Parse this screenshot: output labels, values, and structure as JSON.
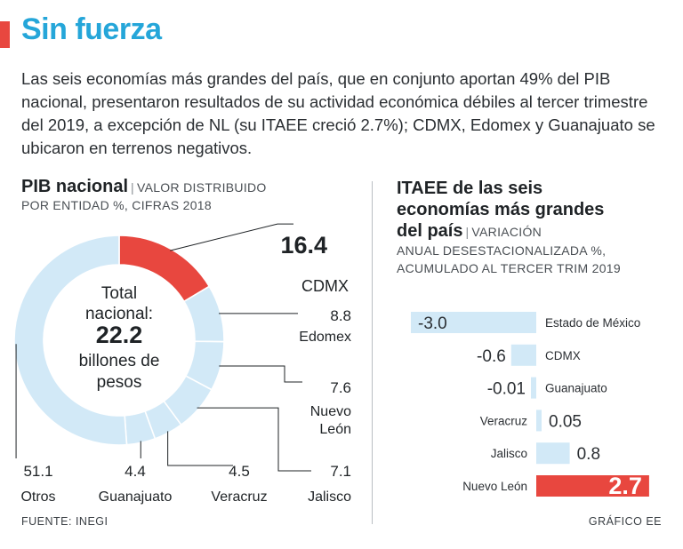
{
  "header": {
    "title": "Sin fuerza",
    "intro": "Las seis economías más grandes del país, que en conjunto aportan 49% del PIB nacional, presentaron resultados de su actividad económica débiles al tercer trimestre del 2019, a excepción de NL (su ITAEE creció 2.7%); CDMX, Edomex y Guanajuato se ubicaron en terrenos negativos."
  },
  "colors": {
    "accent": "#e8473f",
    "title": "#25a6d9",
    "light_blue": "#d2e9f7"
  },
  "left": {
    "title": "PIB nacional",
    "subtitle_line1": "VALOR DISTRIBUIDO",
    "subtitle_line2": "POR ENTIDAD %, CIFRAS 2018",
    "center_line1": "Total",
    "center_line2": "nacional:",
    "center_value": "22.2",
    "center_line3": "billones de",
    "center_line4": "pesos"
  },
  "right": {
    "title_line1": "ITAEE de las seis",
    "title_line2": "economías más grandes",
    "title_line3": "del país",
    "subtitle_line1": "VARIACIÓN",
    "subtitle_line2": "ANUAL DESESTACIONALIZADA %,",
    "subtitle_line3": "ACUMULADO AL TERCER TRIM 2019"
  },
  "footer": {
    "source": "FUENTE: INEGI",
    "credit": "GRÁFICO EE"
  },
  "chart_data": [
    {
      "type": "pie",
      "title": "PIB nacional",
      "subtitle": "VALOR DISTRIBUIDO POR ENTIDAD %, CIFRAS 2018",
      "total_label": "Total nacional: 22.2 billones de pesos",
      "slices": [
        {
          "label": "CDMX",
          "value": 16.4,
          "display": "16.4",
          "highlight": true
        },
        {
          "label": "Edomex",
          "value": 8.8,
          "display": "8.8"
        },
        {
          "label": "Nuevo León",
          "value": 7.6,
          "display": "7.6",
          "lines": [
            "Nuevo",
            "León"
          ]
        },
        {
          "label": "Jalisco",
          "value": 7.1,
          "display": "7.1"
        },
        {
          "label": "Veracruz",
          "value": 4.5,
          "display": "4.5"
        },
        {
          "label": "Guanajuato",
          "value": 4.4,
          "display": "4.4"
        },
        {
          "label": "Otros",
          "value": 51.1,
          "display": "51.1"
        }
      ]
    },
    {
      "type": "bar",
      "orientation": "horizontal",
      "title": "ITAEE de las seis economías más grandes del país",
      "subtitle": "VARIACIÓN ANUAL DESESTACIONALIZADA %, ACUMULADO AL TERCER TRIM 2019",
      "categories": [
        "Estado de México",
        "CDMX",
        "Guanajuato",
        "Veracruz",
        "Jalisco",
        "Nuevo León"
      ],
      "values": [
        -3.0,
        -0.6,
        -0.01,
        0.05,
        0.8,
        2.7
      ],
      "labels": [
        "-3.0",
        "-0.6",
        "-0.01",
        "0.05",
        "0.8",
        "2.7"
      ],
      "highlight": "Nuevo León"
    }
  ]
}
